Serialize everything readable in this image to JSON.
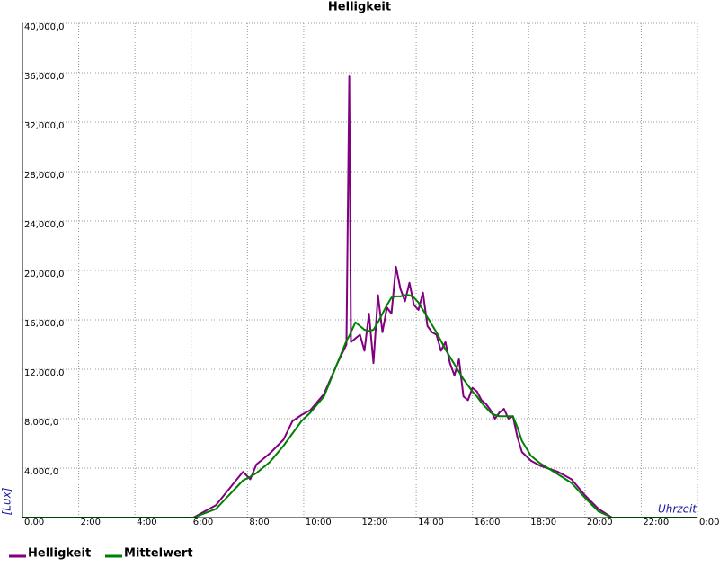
{
  "chart_data": {
    "type": "line",
    "title": "Helligkeit",
    "x_label": "Uhrzeit",
    "y_label": "[Lux]",
    "x": [
      0,
      6.08,
      6.88,
      7.84,
      8.1,
      8.32,
      8.8,
      9.28,
      9.6,
      9.92,
      10.24,
      10.72,
      11.2,
      11.52,
      11.62,
      11.68,
      11.84,
      12.0,
      12.16,
      12.32,
      12.48,
      12.64,
      12.8,
      12.96,
      13.12,
      13.28,
      13.44,
      13.6,
      13.76,
      13.92,
      14.08,
      14.24,
      14.4,
      14.56,
      14.72,
      14.88,
      15.04,
      15.2,
      15.36,
      15.52,
      15.68,
      15.84,
      16.0,
      16.16,
      16.32,
      16.48,
      16.64,
      16.8,
      16.96,
      17.12,
      17.28,
      17.44,
      17.6,
      17.76,
      18.08,
      18.4,
      19.04,
      19.52,
      20.0,
      20.48,
      20.96,
      24
    ],
    "series": [
      {
        "name": "Helligkeit",
        "color": "#800080",
        "values": [
          0,
          0,
          1000,
          3700,
          3100,
          4300,
          5200,
          6300,
          7800,
          8300,
          8700,
          10000,
          12500,
          14000,
          35700,
          14200,
          14500,
          14800,
          13500,
          16500,
          12500,
          18000,
          15000,
          17000,
          16500,
          20300,
          18500,
          17500,
          19000,
          17200,
          16800,
          18200,
          15500,
          15000,
          14800,
          13500,
          14200,
          12500,
          11500,
          12800,
          9800,
          9500,
          10500,
          10200,
          9500,
          9200,
          8700,
          8000,
          8500,
          8800,
          8000,
          8200,
          6500,
          5300,
          4600,
          4200,
          3700,
          3100,
          1800,
          700,
          0,
          0
        ]
      },
      {
        "name": "Mittelwert",
        "color": "#008000",
        "values": [
          0,
          0,
          700,
          3000,
          3300,
          3600,
          4500,
          5800,
          6800,
          7800,
          8500,
          9800,
          12500,
          14300,
          14700,
          15000,
          15800,
          15500,
          15200,
          15100,
          15200,
          15800,
          16500,
          17200,
          17800,
          17900,
          17900,
          18000,
          18000,
          17800,
          17400,
          16800,
          16200,
          15600,
          15000,
          14300,
          13600,
          13000,
          12400,
          11800,
          11200,
          10700,
          10200,
          9800,
          9300,
          8900,
          8500,
          8300,
          8200,
          8200,
          8200,
          8200,
          7300,
          6200,
          5000,
          4400,
          3500,
          2800,
          1600,
          500,
          0,
          0
        ]
      }
    ],
    "xlim": [
      0,
      24
    ],
    "xticks": [
      {
        "value": 0,
        "label": "0,00"
      },
      {
        "value": 2,
        "label": "2:00"
      },
      {
        "value": 4,
        "label": "4:00"
      },
      {
        "value": 6,
        "label": "6:00"
      },
      {
        "value": 8,
        "label": "8:00"
      },
      {
        "value": 10,
        "label": "10:00"
      },
      {
        "value": 12,
        "label": "12:00"
      },
      {
        "value": 14,
        "label": "14:00"
      },
      {
        "value": 16,
        "label": "16:00"
      },
      {
        "value": 18,
        "label": "18:00"
      },
      {
        "value": 20,
        "label": "20:00"
      },
      {
        "value": 22,
        "label": "22:00"
      },
      {
        "value": 24,
        "label": "0:00"
      }
    ],
    "ylim": [
      0,
      40000
    ],
    "yticks": [
      {
        "value": 4000,
        "label": "4,000,0"
      },
      {
        "value": 8000,
        "label": "8,000,0"
      },
      {
        "value": 12000,
        "label": "12,000,0"
      },
      {
        "value": 16000,
        "label": "16,000,0"
      },
      {
        "value": 20000,
        "label": "20,000,0"
      },
      {
        "value": 24000,
        "label": "24,000,0"
      },
      {
        "value": 28000,
        "label": "28,000,0"
      },
      {
        "value": 32000,
        "label": "32,000,0"
      },
      {
        "value": 36000,
        "label": "36,000,0"
      },
      {
        "value": 40000,
        "label": "40,000,0"
      }
    ],
    "grid": true
  }
}
